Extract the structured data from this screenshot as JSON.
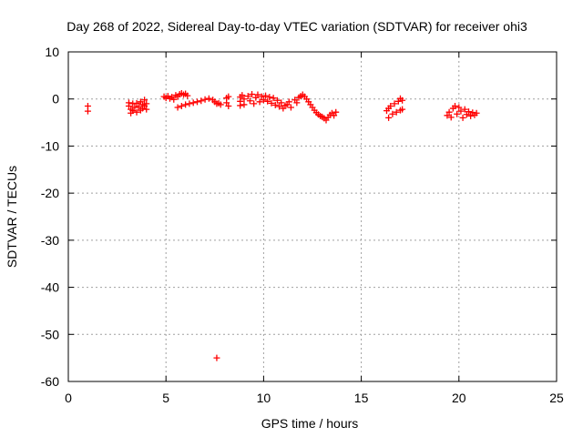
{
  "chart_data": {
    "type": "scatter",
    "title": "Day 268 of 2022, Sidereal Day-to-day VTEC variation (SDTVAR) for receiver ohi3",
    "xlabel": "GPS time / hours",
    "ylabel": "SDTVAR / TECUs",
    "xlim": [
      0,
      25
    ],
    "ylim": [
      -60,
      10
    ],
    "xticks": [
      0,
      5,
      10,
      15,
      20,
      25
    ],
    "yticks": [
      10,
      0,
      -10,
      -20,
      -30,
      -40,
      -50,
      -60
    ],
    "xtick_labels": [
      "0",
      "5",
      "10",
      "15",
      "20",
      "25"
    ],
    "ytick_labels": [
      "10",
      "0",
      "-10",
      "-20",
      "-30",
      "-40",
      "-50",
      "-60"
    ],
    "grid": true,
    "marker": "+",
    "color": "#ff0000",
    "series": [
      {
        "name": "SDTVAR",
        "points": [
          [
            1.0,
            -1.5
          ],
          [
            1.0,
            -2.6
          ],
          [
            3.1,
            -0.8
          ],
          [
            3.1,
            -1.5
          ],
          [
            3.2,
            -2.2
          ],
          [
            3.2,
            -3.0
          ],
          [
            3.3,
            -1.0
          ],
          [
            3.3,
            -2.5
          ],
          [
            3.4,
            -1.8
          ],
          [
            3.5,
            -2.8
          ],
          [
            3.5,
            -0.9
          ],
          [
            3.6,
            -1.6
          ],
          [
            3.7,
            -2.4
          ],
          [
            3.7,
            -0.6
          ],
          [
            3.8,
            -1.2
          ],
          [
            3.8,
            -2.0
          ],
          [
            3.9,
            -0.2
          ],
          [
            3.9,
            -1.5
          ],
          [
            4.0,
            -1.0
          ],
          [
            4.0,
            -2.2
          ],
          [
            4.9,
            0.5
          ],
          [
            5.0,
            0.2
          ],
          [
            5.1,
            0.6
          ],
          [
            5.2,
            0.1
          ],
          [
            5.3,
            0.4
          ],
          [
            5.4,
            -0.1
          ],
          [
            5.5,
            0.8
          ],
          [
            5.6,
            0.5
          ],
          [
            5.7,
            1.0
          ],
          [
            5.8,
            1.2
          ],
          [
            5.9,
            0.9
          ],
          [
            6.0,
            1.1
          ],
          [
            6.1,
            0.7
          ],
          [
            5.6,
            -1.8
          ],
          [
            5.8,
            -1.5
          ],
          [
            6.0,
            -1.2
          ],
          [
            6.2,
            -1.0
          ],
          [
            6.4,
            -0.8
          ],
          [
            6.6,
            -0.6
          ],
          [
            6.8,
            -0.4
          ],
          [
            7.0,
            -0.1
          ],
          [
            7.2,
            0.1
          ],
          [
            7.4,
            -0.2
          ],
          [
            7.5,
            -0.6
          ],
          [
            7.6,
            -1.0
          ],
          [
            7.7,
            -0.9
          ],
          [
            7.8,
            -1.2
          ],
          [
            7.6,
            -55.0
          ],
          [
            8.1,
            0.2
          ],
          [
            8.1,
            -0.8
          ],
          [
            8.2,
            -1.5
          ],
          [
            8.2,
            0.5
          ],
          [
            8.8,
            0.4
          ],
          [
            8.8,
            -0.5
          ],
          [
            8.8,
            -1.4
          ],
          [
            8.9,
            0.8
          ],
          [
            9.0,
            0.0
          ],
          [
            9.0,
            -1.2
          ],
          [
            9.2,
            0.6
          ],
          [
            9.3,
            -0.4
          ],
          [
            9.4,
            1.0
          ],
          [
            9.5,
            -1.0
          ],
          [
            9.6,
            0.3
          ],
          [
            9.7,
            0.9
          ],
          [
            9.8,
            -0.6
          ],
          [
            9.9,
            0.5
          ],
          [
            10.0,
            -0.2
          ],
          [
            10.1,
            0.7
          ],
          [
            10.2,
            -0.5
          ],
          [
            10.3,
            0.4
          ],
          [
            10.4,
            -0.9
          ],
          [
            10.5,
            0.2
          ],
          [
            10.6,
            -1.3
          ],
          [
            10.7,
            -0.3
          ],
          [
            10.8,
            -1.6
          ],
          [
            10.9,
            -0.8
          ],
          [
            11.0,
            -2.0
          ],
          [
            11.1,
            -1.4
          ],
          [
            11.2,
            -1.2
          ],
          [
            11.3,
            -0.6
          ],
          [
            11.4,
            -1.8
          ],
          [
            11.6,
            -0.2
          ],
          [
            11.7,
            -0.8
          ],
          [
            11.8,
            0.3
          ],
          [
            11.9,
            0.6
          ],
          [
            12.0,
            0.9
          ],
          [
            12.1,
            0.5
          ],
          [
            12.2,
            0.0
          ],
          [
            12.3,
            -0.6
          ],
          [
            12.4,
            -1.2
          ],
          [
            12.5,
            -1.8
          ],
          [
            12.6,
            -2.4
          ],
          [
            12.7,
            -2.9
          ],
          [
            12.8,
            -3.3
          ],
          [
            12.9,
            -3.6
          ],
          [
            13.0,
            -3.8
          ],
          [
            13.1,
            -4.1
          ],
          [
            13.2,
            -4.5
          ],
          [
            13.3,
            -3.9
          ],
          [
            13.4,
            -3.4
          ],
          [
            13.5,
            -3.0
          ],
          [
            13.6,
            -3.5
          ],
          [
            13.7,
            -2.8
          ],
          [
            16.3,
            -2.5
          ],
          [
            16.4,
            -2.0
          ],
          [
            16.4,
            -4.0
          ],
          [
            16.5,
            -1.5
          ],
          [
            16.6,
            -3.2
          ],
          [
            16.7,
            -1.0
          ],
          [
            16.8,
            -2.8
          ],
          [
            16.9,
            -0.5
          ],
          [
            17.0,
            -2.4
          ],
          [
            17.0,
            0.1
          ],
          [
            17.1,
            -0.3
          ],
          [
            17.1,
            -2.2
          ],
          [
            19.4,
            -3.5
          ],
          [
            19.5,
            -2.8
          ],
          [
            19.6,
            -3.9
          ],
          [
            19.7,
            -2.0
          ],
          [
            19.8,
            -1.5
          ],
          [
            19.9,
            -3.2
          ],
          [
            20.0,
            -1.8
          ],
          [
            20.1,
            -2.6
          ],
          [
            20.2,
            -4.0
          ],
          [
            20.3,
            -2.2
          ],
          [
            20.4,
            -3.3
          ],
          [
            20.5,
            -2.7
          ],
          [
            20.6,
            -3.6
          ],
          [
            20.7,
            -2.9
          ],
          [
            20.8,
            -3.4
          ],
          [
            20.9,
            -3.0
          ]
        ]
      }
    ]
  }
}
